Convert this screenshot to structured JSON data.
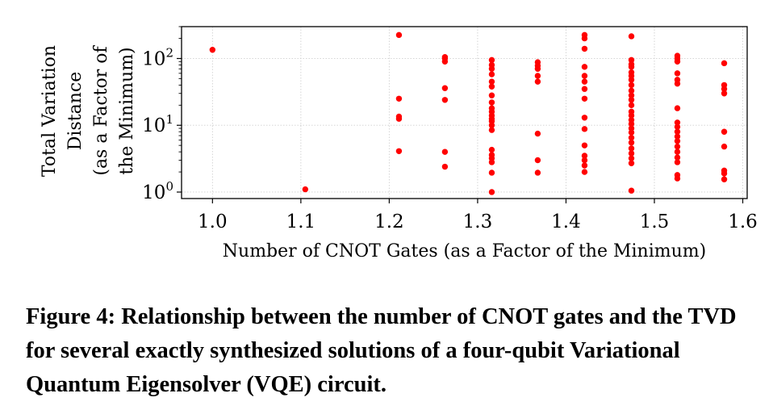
{
  "caption": "Figure 4: Relationship between the number of CNOT gates and the TVD for several exactly synthesized solutions of a four-qubit Variational Quantum Eigensolver (VQE) circuit.",
  "chart_data": {
    "type": "scatter",
    "xlabel": "Number of CNOT Gates (as a Factor of the Minimum)",
    "ylabel": [
      "Total Variation",
      "Distance",
      "(as a Factor of",
      "the Minimum)"
    ],
    "x_scale": "linear",
    "y_scale": "log",
    "xlim": [
      0.965,
      1.605
    ],
    "ylim": [
      0.8,
      300
    ],
    "x_ticks": [
      1.0,
      1.1,
      1.2,
      1.3,
      1.4,
      1.5,
      1.6
    ],
    "x_tick_labels": [
      "1.0",
      "1.1",
      "1.2",
      "1.3",
      "1.4",
      "1.5",
      "1.6"
    ],
    "y_ticks": [
      1,
      10,
      100
    ],
    "y_tick_labels": [
      {
        "base": "10",
        "exp": "0"
      },
      {
        "base": "10",
        "exp": "1"
      },
      {
        "base": "10",
        "exp": "2"
      }
    ],
    "grid": true,
    "marker_color": "#ff0000",
    "points": [
      [
        1.0,
        135
      ],
      [
        1.105,
        1.1
      ],
      [
        1.211,
        225
      ],
      [
        1.211,
        25
      ],
      [
        1.211,
        13.5
      ],
      [
        1.211,
        12.5
      ],
      [
        1.211,
        4.1
      ],
      [
        1.263,
        105
      ],
      [
        1.263,
        100
      ],
      [
        1.263,
        90
      ],
      [
        1.263,
        36
      ],
      [
        1.263,
        24
      ],
      [
        1.263,
        4.0
      ],
      [
        1.263,
        2.4
      ],
      [
        1.316,
        95
      ],
      [
        1.316,
        80
      ],
      [
        1.316,
        70
      ],
      [
        1.316,
        58
      ],
      [
        1.316,
        45
      ],
      [
        1.316,
        38
      ],
      [
        1.316,
        28
      ],
      [
        1.316,
        22
      ],
      [
        1.316,
        18
      ],
      [
        1.316,
        16
      ],
      [
        1.316,
        14
      ],
      [
        1.316,
        12.5
      ],
      [
        1.316,
        11.5
      ],
      [
        1.316,
        10
      ],
      [
        1.316,
        8.5
      ],
      [
        1.316,
        4.3
      ],
      [
        1.316,
        3.6
      ],
      [
        1.316,
        3.2
      ],
      [
        1.316,
        2.8
      ],
      [
        1.316,
        1.95
      ],
      [
        1.316,
        1.0
      ],
      [
        1.368,
        88
      ],
      [
        1.368,
        78
      ],
      [
        1.368,
        70
      ],
      [
        1.368,
        55
      ],
      [
        1.368,
        45
      ],
      [
        1.368,
        7.5
      ],
      [
        1.368,
        3.0
      ],
      [
        1.368,
        1.95
      ],
      [
        1.421,
        225
      ],
      [
        1.421,
        200
      ],
      [
        1.421,
        140
      ],
      [
        1.421,
        75
      ],
      [
        1.421,
        55
      ],
      [
        1.421,
        45
      ],
      [
        1.421,
        35
      ],
      [
        1.421,
        25
      ],
      [
        1.421,
        13
      ],
      [
        1.421,
        8.8
      ],
      [
        1.421,
        5.0
      ],
      [
        1.421,
        3.5
      ],
      [
        1.421,
        3.0
      ],
      [
        1.421,
        2.5
      ],
      [
        1.421,
        2.0
      ],
      [
        1.474,
        215
      ],
      [
        1.474,
        95
      ],
      [
        1.474,
        82
      ],
      [
        1.474,
        75
      ],
      [
        1.474,
        62
      ],
      [
        1.474,
        55
      ],
      [
        1.474,
        48
      ],
      [
        1.474,
        40
      ],
      [
        1.474,
        33
      ],
      [
        1.474,
        28
      ],
      [
        1.474,
        24
      ],
      [
        1.474,
        20
      ],
      [
        1.474,
        16
      ],
      [
        1.474,
        14
      ],
      [
        1.474,
        12
      ],
      [
        1.474,
        10.5
      ],
      [
        1.474,
        9.0
      ],
      [
        1.474,
        7.8
      ],
      [
        1.474,
        6.5
      ],
      [
        1.474,
        5.5
      ],
      [
        1.474,
        4.5
      ],
      [
        1.474,
        3.8
      ],
      [
        1.474,
        3.2
      ],
      [
        1.474,
        2.7
      ],
      [
        1.474,
        1.05
      ],
      [
        1.526,
        110
      ],
      [
        1.526,
        100
      ],
      [
        1.526,
        90
      ],
      [
        1.526,
        60
      ],
      [
        1.526,
        48
      ],
      [
        1.526,
        42
      ],
      [
        1.526,
        18
      ],
      [
        1.526,
        11
      ],
      [
        1.526,
        9.5
      ],
      [
        1.526,
        8.0
      ],
      [
        1.526,
        6.8
      ],
      [
        1.526,
        5.8
      ],
      [
        1.526,
        4.8
      ],
      [
        1.526,
        4.0
      ],
      [
        1.526,
        3.3
      ],
      [
        1.526,
        2.8
      ],
      [
        1.526,
        1.8
      ],
      [
        1.526,
        1.6
      ],
      [
        1.579,
        85
      ],
      [
        1.579,
        40
      ],
      [
        1.579,
        35
      ],
      [
        1.579,
        30
      ],
      [
        1.579,
        8.0
      ],
      [
        1.579,
        4.8
      ],
      [
        1.579,
        2.1
      ],
      [
        1.579,
        1.9
      ],
      [
        1.579,
        1.55
      ]
    ]
  }
}
